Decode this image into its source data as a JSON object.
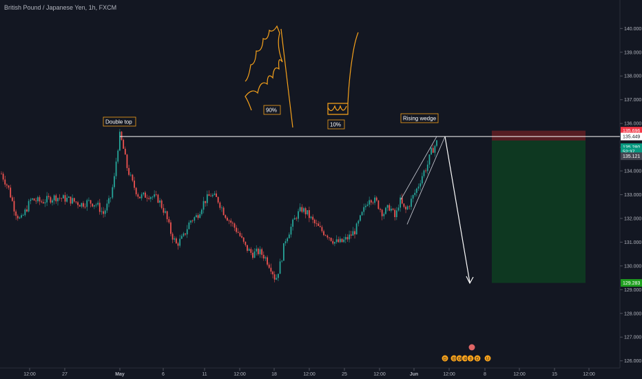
{
  "header": {
    "title": "British Pound / Japanese Yen, 1h, FXCM"
  },
  "colors": {
    "background": "#131722",
    "up": "#26a69a",
    "down": "#ef5350",
    "annotation": "#f7a21b",
    "line": "#ffffff",
    "stop_zone": "#5b1d24",
    "target_zone": "#0e3a22",
    "stop_tag": "#f23645",
    "entry_tag": "#ffffff",
    "target_tag": "#22ab94",
    "price_tag": "#089981",
    "current_tag": "#b2b5be",
    "final_target_tag": "#1e9e1e"
  },
  "chart_data": {
    "type": "candlestick",
    "title": "British Pound / Japanese Yen, 1h, FXCM",
    "ylim": [
      125.7,
      141.2
    ],
    "yticks": [
      "126.000",
      "127.000",
      "128.000",
      "129.000",
      "130.000",
      "131.000",
      "132.000",
      "133.000",
      "134.000",
      "135.000",
      "136.000",
      "137.000",
      "138.000",
      "139.000",
      "140.000"
    ],
    "xticks": [
      "12:00",
      "27",
      "May",
      "6",
      "11",
      "12:00",
      "18",
      "12:00",
      "25",
      "12:00",
      "Jun",
      "12:00",
      "8",
      "12:00",
      "15",
      "12:00"
    ],
    "price_path": [
      [
        0,
        134.0
      ],
      [
        12,
        133.3
      ],
      [
        22,
        132.3
      ],
      [
        30,
        131.9
      ],
      [
        45,
        132.8
      ],
      [
        60,
        132.7
      ],
      [
        80,
        132.9
      ],
      [
        100,
        132.8
      ],
      [
        118,
        132.6
      ],
      [
        128,
        132.7
      ],
      [
        140,
        132.6
      ],
      [
        150,
        132.2
      ],
      [
        160,
        132.8
      ],
      [
        166,
        133.7
      ],
      [
        170,
        134.8
      ],
      [
        174,
        135.5
      ],
      [
        178,
        135.1
      ],
      [
        184,
        134.2
      ],
      [
        192,
        133.5
      ],
      [
        202,
        132.9
      ],
      [
        215,
        133.0
      ],
      [
        230,
        132.8
      ],
      [
        240,
        132.2
      ],
      [
        248,
        131.4
      ],
      [
        256,
        130.9
      ],
      [
        266,
        131.2
      ],
      [
        276,
        131.9
      ],
      [
        286,
        132.1
      ],
      [
        296,
        132.7
      ],
      [
        306,
        133.0
      ],
      [
        316,
        132.8
      ],
      [
        326,
        132.2
      ],
      [
        336,
        131.8
      ],
      [
        346,
        131.4
      ],
      [
        356,
        130.8
      ],
      [
        366,
        130.5
      ],
      [
        376,
        130.6
      ],
      [
        384,
        130.4
      ],
      [
        394,
        129.9
      ],
      [
        400,
        129.4
      ],
      [
        408,
        130.2
      ],
      [
        414,
        131.1
      ],
      [
        422,
        131.6
      ],
      [
        430,
        132.1
      ],
      [
        438,
        132.4
      ],
      [
        446,
        132.2
      ],
      [
        456,
        131.8
      ],
      [
        466,
        131.5
      ],
      [
        476,
        131.3
      ],
      [
        486,
        131.0
      ],
      [
        496,
        131.0
      ],
      [
        506,
        131.2
      ],
      [
        516,
        131.5
      ],
      [
        526,
        132.2
      ],
      [
        536,
        132.9
      ],
      [
        546,
        132.7
      ],
      [
        556,
        132.2
      ],
      [
        566,
        132.5
      ],
      [
        574,
        132.0
      ],
      [
        580,
        132.8
      ],
      [
        588,
        132.3
      ],
      [
        596,
        132.7
      ],
      [
        606,
        133.3
      ],
      [
        614,
        133.9
      ],
      [
        620,
        134.2
      ],
      [
        626,
        134.8
      ],
      [
        634,
        135.2
      ]
    ],
    "candle_count": 240,
    "candle_x_range": [
      2,
      634
    ],
    "resistance_level": 135.449,
    "position": {
      "stop": 135.696,
      "entry": 135.449,
      "target_1": 135.28,
      "final_target": 129.283
    },
    "price_tags": [
      {
        "label": "135.696",
        "role": "stop"
      },
      {
        "label": "135.449",
        "role": "entry"
      },
      {
        "label": "135.280",
        "role": "price"
      },
      {
        "label": "52:37",
        "role": "countdown"
      },
      {
        "label": "135.121",
        "role": "current"
      },
      {
        "label": "129.283",
        "role": "final_target"
      }
    ],
    "annotations": [
      {
        "text": "Double top"
      },
      {
        "text": "90%"
      },
      {
        "text": "10%"
      },
      {
        "text": "Rising wedge"
      }
    ],
    "events": [
      "D",
      "E",
      "G",
      "4",
      "3",
      "D",
      "U"
    ]
  }
}
